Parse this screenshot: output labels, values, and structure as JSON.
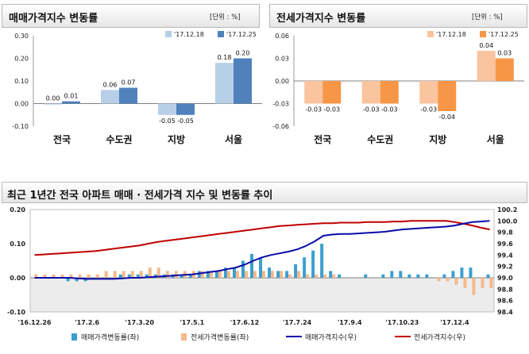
{
  "header1": {
    "title": "매매가격지수 변동률",
    "unit": "[단위 : %]"
  },
  "header2": {
    "title": "전세가격지수 변동률",
    "unit": "[단위 : %]"
  },
  "header3": {
    "title": "최근 1년간 전국 아파트 매매 · 전세가격 지수 및 변동률 추이"
  },
  "colors": {
    "sale_prev": "#b8cfe8",
    "sale_curr": "#4f81bd",
    "jeonse_prev": "#fac49e",
    "jeonse_curr": "#f79646",
    "sale_bar": "#3b9fcf",
    "jeonse_bar": "#f5b98a",
    "sale_index": "#0a0aa8",
    "jeonse_index": "#c00000"
  },
  "chart_data": [
    {
      "type": "bar",
      "categories": [
        "전국",
        "수도권",
        "지방",
        "서울"
      ],
      "series": [
        {
          "name": "'17.12.18",
          "values": [
            0.0,
            0.06,
            -0.05,
            0.18
          ]
        },
        {
          "name": "'17.12.25",
          "values": [
            0.01,
            0.07,
            -0.05,
            0.2
          ]
        }
      ],
      "data_labels": [
        [
          "0.00",
          "0.06",
          "-0.05",
          "0.18"
        ],
        [
          "0.01",
          "0.07",
          "-0.05",
          "0.20"
        ]
      ],
      "ylim": [
        -0.1,
        0.3
      ],
      "yticks": [
        "0.30",
        "0.20",
        "0.10",
        "0.00",
        "-0.10"
      ],
      "ytick_values": [
        0.3,
        0.2,
        0.1,
        0.0,
        -0.1
      ],
      "legend": "top-right"
    },
    {
      "type": "bar",
      "categories": [
        "전국",
        "수도권",
        "지방",
        "서울"
      ],
      "series": [
        {
          "name": "'17.12.18",
          "values": [
            -0.03,
            -0.03,
            -0.03,
            0.04
          ]
        },
        {
          "name": "'17.12.25",
          "values": [
            -0.03,
            -0.03,
            -0.04,
            0.03
          ]
        }
      ],
      "data_labels": [
        [
          "-0.03",
          "-0.03",
          "-0.03",
          "0.04"
        ],
        [
          "-0.03",
          "-0.03",
          "-0.04",
          "0.03"
        ]
      ],
      "ylim": [
        -0.06,
        0.06
      ],
      "yticks": [
        "0.06",
        "0.03",
        "0.00",
        "-0.03",
        "-0.06"
      ],
      "ytick_values": [
        0.06,
        0.03,
        0.0,
        -0.03,
        -0.06
      ],
      "legend": "top-right"
    },
    {
      "type": "bar+line",
      "x_labels": [
        "'16.12.26",
        "'17.2.6",
        "'17.3.20",
        "'17.5.1",
        "'17.6.12",
        "'17.7.24",
        "'17.9.4",
        "'17.10.23",
        "'17.12.4"
      ],
      "x_label_weeks": [
        0,
        6,
        12,
        18,
        24,
        30,
        36,
        42,
        48
      ],
      "weeks": 53,
      "left_axis": {
        "ylim": [
          -0.1,
          0.2
        ],
        "ticks": [
          "0.20",
          "0.10",
          "0.00",
          "-0.10"
        ],
        "tick_values": [
          0.2,
          0.1,
          0.0,
          -0.1
        ]
      },
      "right_axis": {
        "ylim": [
          98.4,
          100.2
        ],
        "ticks": [
          "100.2",
          "100.0",
          "99.8",
          "99.6",
          "99.4",
          "99.2",
          "99.0",
          "98.8",
          "98.6",
          "98.4"
        ],
        "tick_values": [
          100.2,
          100.0,
          99.8,
          99.6,
          99.4,
          99.2,
          99.0,
          98.8,
          98.6,
          98.4
        ]
      },
      "series": [
        {
          "name": "매매가격변동률(좌)",
          "type": "bar",
          "axis": "left",
          "values": [
            0.0,
            0.0,
            0.0,
            0.0,
            -0.01,
            -0.01,
            -0.01,
            0.0,
            0.0,
            0.0,
            0.01,
            0.01,
            0.01,
            0.01,
            0.01,
            0.01,
            0.01,
            0.01,
            0.01,
            0.02,
            0.02,
            0.02,
            0.03,
            0.03,
            0.05,
            0.07,
            0.06,
            0.03,
            0.02,
            0.02,
            0.04,
            0.06,
            0.08,
            0.1,
            0.02,
            0.01,
            0.0,
            0.0,
            0.01,
            0.0,
            0.01,
            0.02,
            0.02,
            0.01,
            0.01,
            0.01,
            0.0,
            0.01,
            0.02,
            0.03,
            0.03,
            0.0,
            0.01
          ]
        },
        {
          "name": "전세가격변동률(좌)",
          "type": "bar",
          "axis": "left",
          "values": [
            0.01,
            0.01,
            0.01,
            0.01,
            0.01,
            0.01,
            0.01,
            0.01,
            0.02,
            0.02,
            0.02,
            0.02,
            0.02,
            0.03,
            0.03,
            0.02,
            0.02,
            0.02,
            0.02,
            0.02,
            0.02,
            0.02,
            0.02,
            0.02,
            0.02,
            0.02,
            0.02,
            0.02,
            0.02,
            0.01,
            0.02,
            0.01,
            0.01,
            0.01,
            0.01,
            0.0,
            0.0,
            0.0,
            0.0,
            0.0,
            0.0,
            0.0,
            0.0,
            0.0,
            0.0,
            0.0,
            -0.01,
            -0.01,
            -0.02,
            -0.03,
            -0.05,
            -0.03,
            -0.03
          ]
        },
        {
          "name": "매매가격지수(우)",
          "type": "line",
          "axis": "right",
          "values": [
            99.0,
            99.0,
            99.0,
            99.0,
            99.0,
            98.99,
            98.98,
            98.98,
            98.98,
            98.98,
            98.99,
            99.0,
            99.0,
            99.01,
            99.02,
            99.03,
            99.04,
            99.05,
            99.06,
            99.08,
            99.1,
            99.12,
            99.15,
            99.18,
            99.23,
            99.3,
            99.36,
            99.4,
            99.43,
            99.46,
            99.5,
            99.56,
            99.64,
            99.74,
            99.76,
            99.77,
            99.77,
            99.78,
            99.79,
            99.8,
            99.81,
            99.83,
            99.85,
            99.86,
            99.87,
            99.88,
            99.89,
            99.9,
            99.92,
            99.95,
            99.98,
            99.99,
            100.0
          ]
        },
        {
          "name": "전세가격지수(우)",
          "type": "line",
          "axis": "right",
          "values": [
            99.4,
            99.41,
            99.42,
            99.43,
            99.44,
            99.45,
            99.46,
            99.47,
            99.49,
            99.51,
            99.53,
            99.55,
            99.57,
            99.6,
            99.63,
            99.65,
            99.67,
            99.69,
            99.71,
            99.73,
            99.75,
            99.77,
            99.79,
            99.81,
            99.83,
            99.85,
            99.87,
            99.89,
            99.91,
            99.92,
            99.93,
            99.94,
            99.95,
            99.96,
            99.96,
            99.97,
            99.97,
            99.97,
            99.98,
            99.98,
            99.98,
            99.99,
            99.99,
            100.0,
            100.0,
            100.0,
            100.0,
            100.0,
            99.98,
            99.95,
            99.92,
            99.88,
            99.85
          ]
        }
      ],
      "legend": "bottom"
    }
  ]
}
